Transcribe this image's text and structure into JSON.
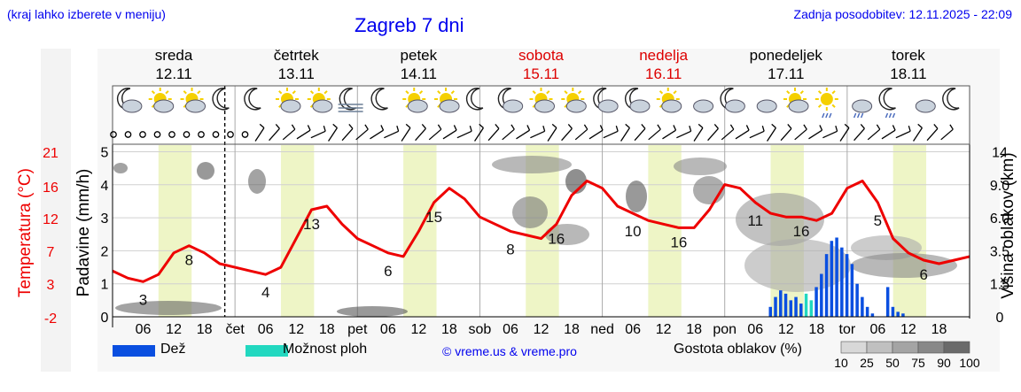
{
  "header": {
    "hint": "(kraj lahko izberete v meniju)",
    "title": "Zagreb 7 dni",
    "updated": "Zadnja posodobitev: 12.11.2025 - 22:09"
  },
  "days": [
    {
      "name": "sreda",
      "date": "12.11",
      "weekend": false
    },
    {
      "name": "četrtek",
      "date": "13.11",
      "weekend": false
    },
    {
      "name": "petek",
      "date": "14.11",
      "weekend": false
    },
    {
      "name": "sobota",
      "date": "15.11",
      "weekend": true
    },
    {
      "name": "nedelja",
      "date": "16.11",
      "weekend": true
    },
    {
      "name": "ponedeljek",
      "date": "17.11",
      "weekend": false
    },
    {
      "name": "torek",
      "date": "18.11",
      "weekend": false
    }
  ],
  "x_axis": {
    "day_labels": [
      "čet",
      "pet",
      "sob",
      "ned",
      "pon",
      "tor"
    ],
    "hour_labels": [
      "06",
      "12",
      "18"
    ]
  },
  "axes": {
    "left_outer_label": "Temperatura (°C)",
    "left_outer_ticks": [
      "21",
      "16",
      "12",
      "7",
      "3",
      "-2"
    ],
    "left_inner_label": "Padavine (mm/h)",
    "left_inner_ticks": [
      "5",
      "4",
      "3",
      "2",
      "1",
      "0"
    ],
    "right_label": "Višina oblakov (km)",
    "right_ticks": [
      "14",
      "9.0",
      "6.0",
      "3.5",
      "1.5",
      "0"
    ]
  },
  "legend": {
    "rain_label": "Dež",
    "shower_label": "Možnost ploh",
    "credit": "© vreme.us & vreme.pro",
    "density_title": "Gostota oblakov (%)",
    "density_ticks": [
      "10",
      "25",
      "50",
      "75",
      "90",
      "100"
    ]
  },
  "colors": {
    "temperature": "#ee0000",
    "rain": "#0a4fe0",
    "shower": "#22d8c0",
    "day_band": "#eef5c6",
    "weekend": "#dd0000",
    "link": "#0000ee"
  },
  "icons": [
    "moon-cloud",
    "sun-cloud",
    "sun-cloud",
    "moon",
    "moon",
    "sun-cloud",
    "sun-cloud",
    "moon-fog",
    "moon",
    "sun-cloud",
    "sun-cloud",
    "moon",
    "moon-cloud",
    "sun-cloud",
    "sun-cloud",
    "moon-cloud",
    "moon-cloud",
    "sun-cloud",
    "cloud",
    "moon-cloud",
    "cloud",
    "sun-cloud",
    "sun-rain",
    "cloud-rain",
    "moon-rain",
    "cloud",
    "moon"
  ],
  "chart_data": {
    "type": "line",
    "title": "Zagreb 7 dni",
    "xlabel": "",
    "ylabel": "Temperatura (°C)",
    "ylim": [
      -2,
      21
    ],
    "x_hours_from_12_11_00h": [
      0,
      3,
      6,
      9,
      12,
      15,
      18,
      21,
      24,
      27,
      30,
      33,
      36,
      39,
      42,
      45,
      48,
      51,
      54,
      57,
      60,
      63,
      66,
      69,
      72,
      75,
      78,
      81,
      84,
      87,
      90,
      93,
      96,
      99,
      102,
      105,
      108,
      111,
      114,
      117,
      120,
      123,
      126,
      129,
      132,
      135,
      138,
      141,
      144,
      147,
      150,
      153,
      156,
      159,
      162,
      165,
      168
    ],
    "series": [
      {
        "name": "Temperatura (°C)",
        "values": [
          4.5,
          3.5,
          3.0,
          4.0,
          7.0,
          8.0,
          7.0,
          5.5,
          5.0,
          4.5,
          4.0,
          5.0,
          9.0,
          13.0,
          13.5,
          11.0,
          9.0,
          8.0,
          7.0,
          6.5,
          10.0,
          14.0,
          16.0,
          14.5,
          12.0,
          11.0,
          10.0,
          9.5,
          9.0,
          11.0,
          15.0,
          17.0,
          16.0,
          13.5,
          12.5,
          11.5,
          11.0,
          10.5,
          10.5,
          13.0,
          16.5,
          16.0,
          14.0,
          12.5,
          12.0,
          12.0,
          11.5,
          12.5,
          16.0,
          17.0,
          14.0,
          9.0,
          7.0,
          6.0,
          5.5,
          6.0,
          6.5
        ]
      },
      {
        "name": "Dež",
        "unit": "mm/h",
        "x_hours_from_12_11_00h": [
          129,
          130,
          131,
          132,
          133,
          134,
          135,
          136,
          137,
          138,
          139,
          140,
          141,
          142,
          143,
          144,
          145,
          146,
          147,
          148,
          149,
          150,
          151,
          152,
          153,
          154,
          155
        ],
        "values": [
          0.3,
          0.6,
          0.8,
          0.7,
          0.5,
          0.6,
          0.4,
          0.7,
          0.5,
          0.9,
          1.3,
          1.9,
          2.3,
          2.4,
          2.1,
          1.9,
          1.6,
          1.0,
          0.6,
          0.3,
          0.1,
          0.0,
          0.0,
          0.9,
          0.3,
          0.15,
          0.1
        ]
      }
    ],
    "temperature_labels": [
      3,
      8,
      4,
      13,
      6,
      15,
      8,
      16,
      10,
      16,
      11,
      16,
      5,
      6
    ]
  }
}
